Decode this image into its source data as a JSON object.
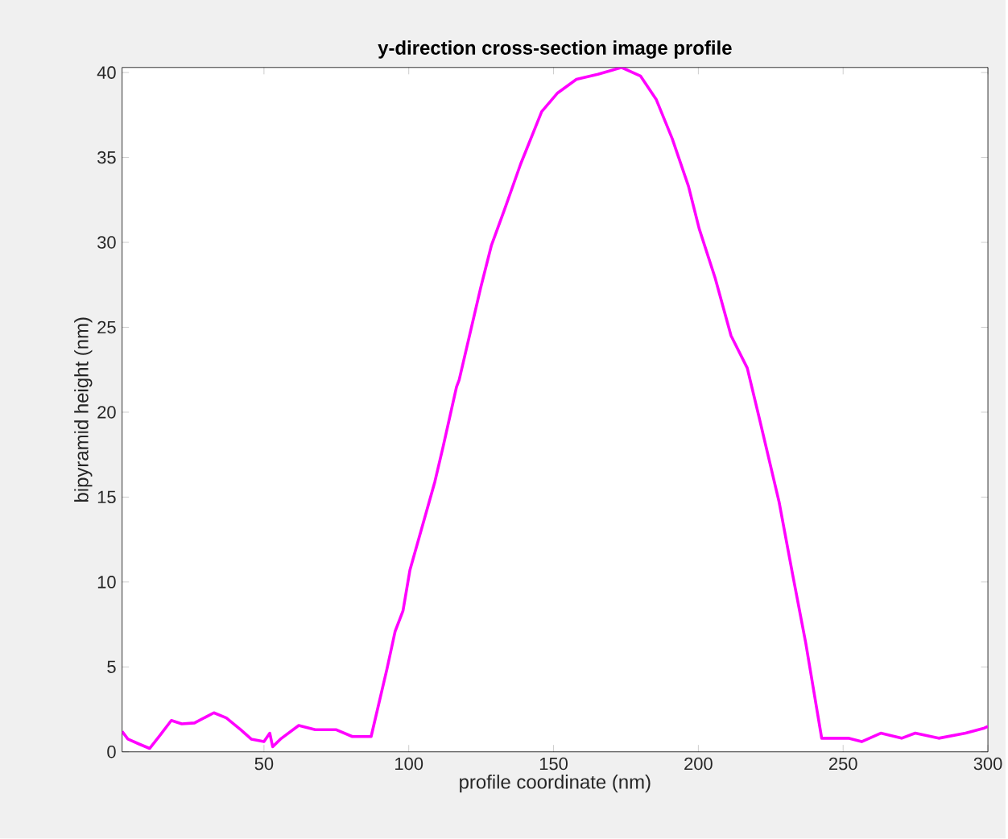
{
  "chart_data": {
    "type": "line",
    "title": "**y-direction cross-section image profile**",
    "xlabel": "profile coordinate (nm)",
    "ylabel": "bipyramid height (nm)",
    "xlim": [
      1,
      300
    ],
    "ylim": [
      0,
      40.3
    ],
    "xticks": [
      50,
      100,
      150,
      200,
      250,
      300
    ],
    "yticks": [
      0,
      5,
      10,
      15,
      20,
      25,
      30,
      35,
      40
    ],
    "grid": false,
    "marker": "none",
    "line_style": "solid",
    "series": [
      {
        "color": "#ff00ff",
        "x": [
          1,
          3,
          7,
          10.5,
          14,
          18,
          21.6,
          26,
          32.7,
          37,
          42,
          45.6,
          50,
          52,
          53,
          55.7,
          62,
          67.7,
          75,
          80.5,
          87,
          92.5,
          95.3,
          98,
          100.4,
          109,
          111.9,
          116.5,
          117.4,
          124.8,
          128.5,
          133,
          138.6,
          145.9,
          151.4,
          157.9,
          165.3,
          173.5,
          180,
          185.5,
          191,
          196.6,
          200.3,
          205.8,
          211.3,
          216.9,
          221.4,
          227.9,
          232.5,
          237.1,
          242.6,
          251.8,
          256.4,
          263,
          270.2,
          274.9,
          283,
          292.3,
          298.8,
          300
        ],
        "values": [
          1.2,
          0.75,
          0.45,
          0.2,
          0.95,
          1.85,
          1.65,
          1.7,
          2.3,
          2.0,
          1.3,
          0.75,
          0.6,
          1.1,
          0.3,
          0.75,
          1.55,
          1.3,
          1.3,
          0.9,
          0.9,
          4.9,
          7.1,
          8.3,
          10.7,
          15.9,
          18.0,
          21.5,
          21.9,
          27.3,
          29.8,
          31.9,
          34.6,
          37.7,
          38.8,
          39.6,
          39.9,
          40.3,
          39.8,
          38.4,
          36.1,
          33.3,
          30.8,
          27.9,
          24.5,
          22.6,
          19.4,
          14.7,
          10.5,
          6.4,
          0.8,
          0.8,
          0.6,
          1.1,
          0.8,
          1.1,
          0.8,
          1.1,
          1.4,
          1.5
        ]
      }
    ]
  }
}
